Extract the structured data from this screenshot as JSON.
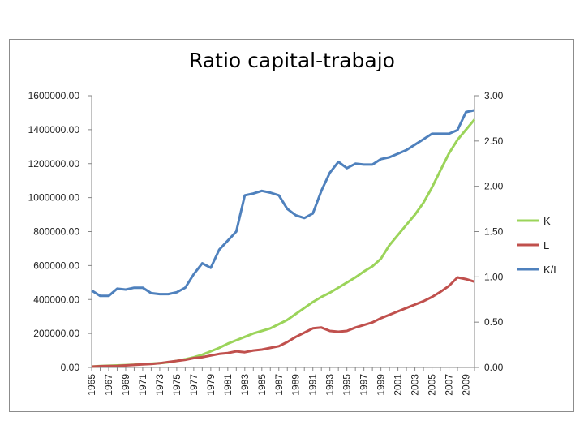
{
  "chart_data": {
    "type": "line",
    "title": "Ratio capital-trabajo",
    "x": [
      1965,
      1966,
      1967,
      1968,
      1969,
      1970,
      1971,
      1972,
      1973,
      1974,
      1975,
      1976,
      1977,
      1978,
      1979,
      1980,
      1981,
      1982,
      1983,
      1984,
      1985,
      1986,
      1987,
      1988,
      1989,
      1990,
      1991,
      1992,
      1993,
      1994,
      1995,
      1996,
      1997,
      1998,
      1999,
      2000,
      2001,
      2002,
      2003,
      2004,
      2005,
      2006,
      2007,
      2008,
      2009,
      2010
    ],
    "x_tick_labels": [
      "1965",
      "1967",
      "1969",
      "1971",
      "1973",
      "1975",
      "1977",
      "1979",
      "1981",
      "1983",
      "1985",
      "1987",
      "1989",
      "1991",
      "1993",
      "1995",
      "1997",
      "1999",
      "2001",
      "2003",
      "2005",
      "2007",
      "2009"
    ],
    "y_left": {
      "ylim": [
        0,
        1600000
      ],
      "ticks": [
        "0.00",
        "200000.00",
        "400000.00",
        "600000.00",
        "800000.00",
        "1000000.00",
        "1200000.00",
        "1400000.00",
        "1600000.00"
      ]
    },
    "y_right": {
      "ylim": [
        0,
        3
      ],
      "ticks": [
        "0.00",
        "0.50",
        "1.00",
        "1.50",
        "2.00",
        "2.50",
        "3.00"
      ]
    },
    "grid": false,
    "legend_position": "right",
    "series": [
      {
        "name": "K",
        "axis": "left",
        "color": "#9bd45a",
        "values": [
          5000,
          8000,
          10000,
          12000,
          14000,
          16000,
          20000,
          22000,
          25000,
          30000,
          38000,
          48000,
          60000,
          75000,
          95000,
          115000,
          140000,
          160000,
          180000,
          200000,
          215000,
          230000,
          255000,
          280000,
          315000,
          350000,
          385000,
          415000,
          440000,
          470000,
          500000,
          530000,
          565000,
          595000,
          640000,
          720000,
          780000,
          840000,
          900000,
          970000,
          1060000,
          1160000,
          1260000,
          1340000,
          1400000,
          1460000
        ]
      },
      {
        "name": "L",
        "axis": "left",
        "color": "#c0504d",
        "values": [
          5000,
          7000,
          8000,
          9000,
          12000,
          15000,
          18000,
          20000,
          25000,
          32000,
          38000,
          45000,
          55000,
          60000,
          70000,
          80000,
          85000,
          95000,
          90000,
          100000,
          105000,
          115000,
          125000,
          150000,
          180000,
          205000,
          230000,
          235000,
          215000,
          210000,
          215000,
          235000,
          250000,
          265000,
          290000,
          310000,
          330000,
          350000,
          370000,
          390000,
          415000,
          445000,
          480000,
          530000,
          520000,
          505000
        ]
      },
      {
        "name": "K/L",
        "axis": "right",
        "color": "#4f81bd",
        "values": [
          0.85,
          0.79,
          0.79,
          0.87,
          0.86,
          0.88,
          0.88,
          0.82,
          0.81,
          0.81,
          0.83,
          0.88,
          1.03,
          1.15,
          1.1,
          1.3,
          1.4,
          1.5,
          1.9,
          1.92,
          1.95,
          1.93,
          1.9,
          1.75,
          1.68,
          1.65,
          1.7,
          1.95,
          2.15,
          2.27,
          2.2,
          2.25,
          2.24,
          2.24,
          2.3,
          2.32,
          2.36,
          2.4,
          2.46,
          2.52,
          2.58,
          2.58,
          2.58,
          2.62,
          2.82,
          2.84
        ]
      }
    ]
  }
}
